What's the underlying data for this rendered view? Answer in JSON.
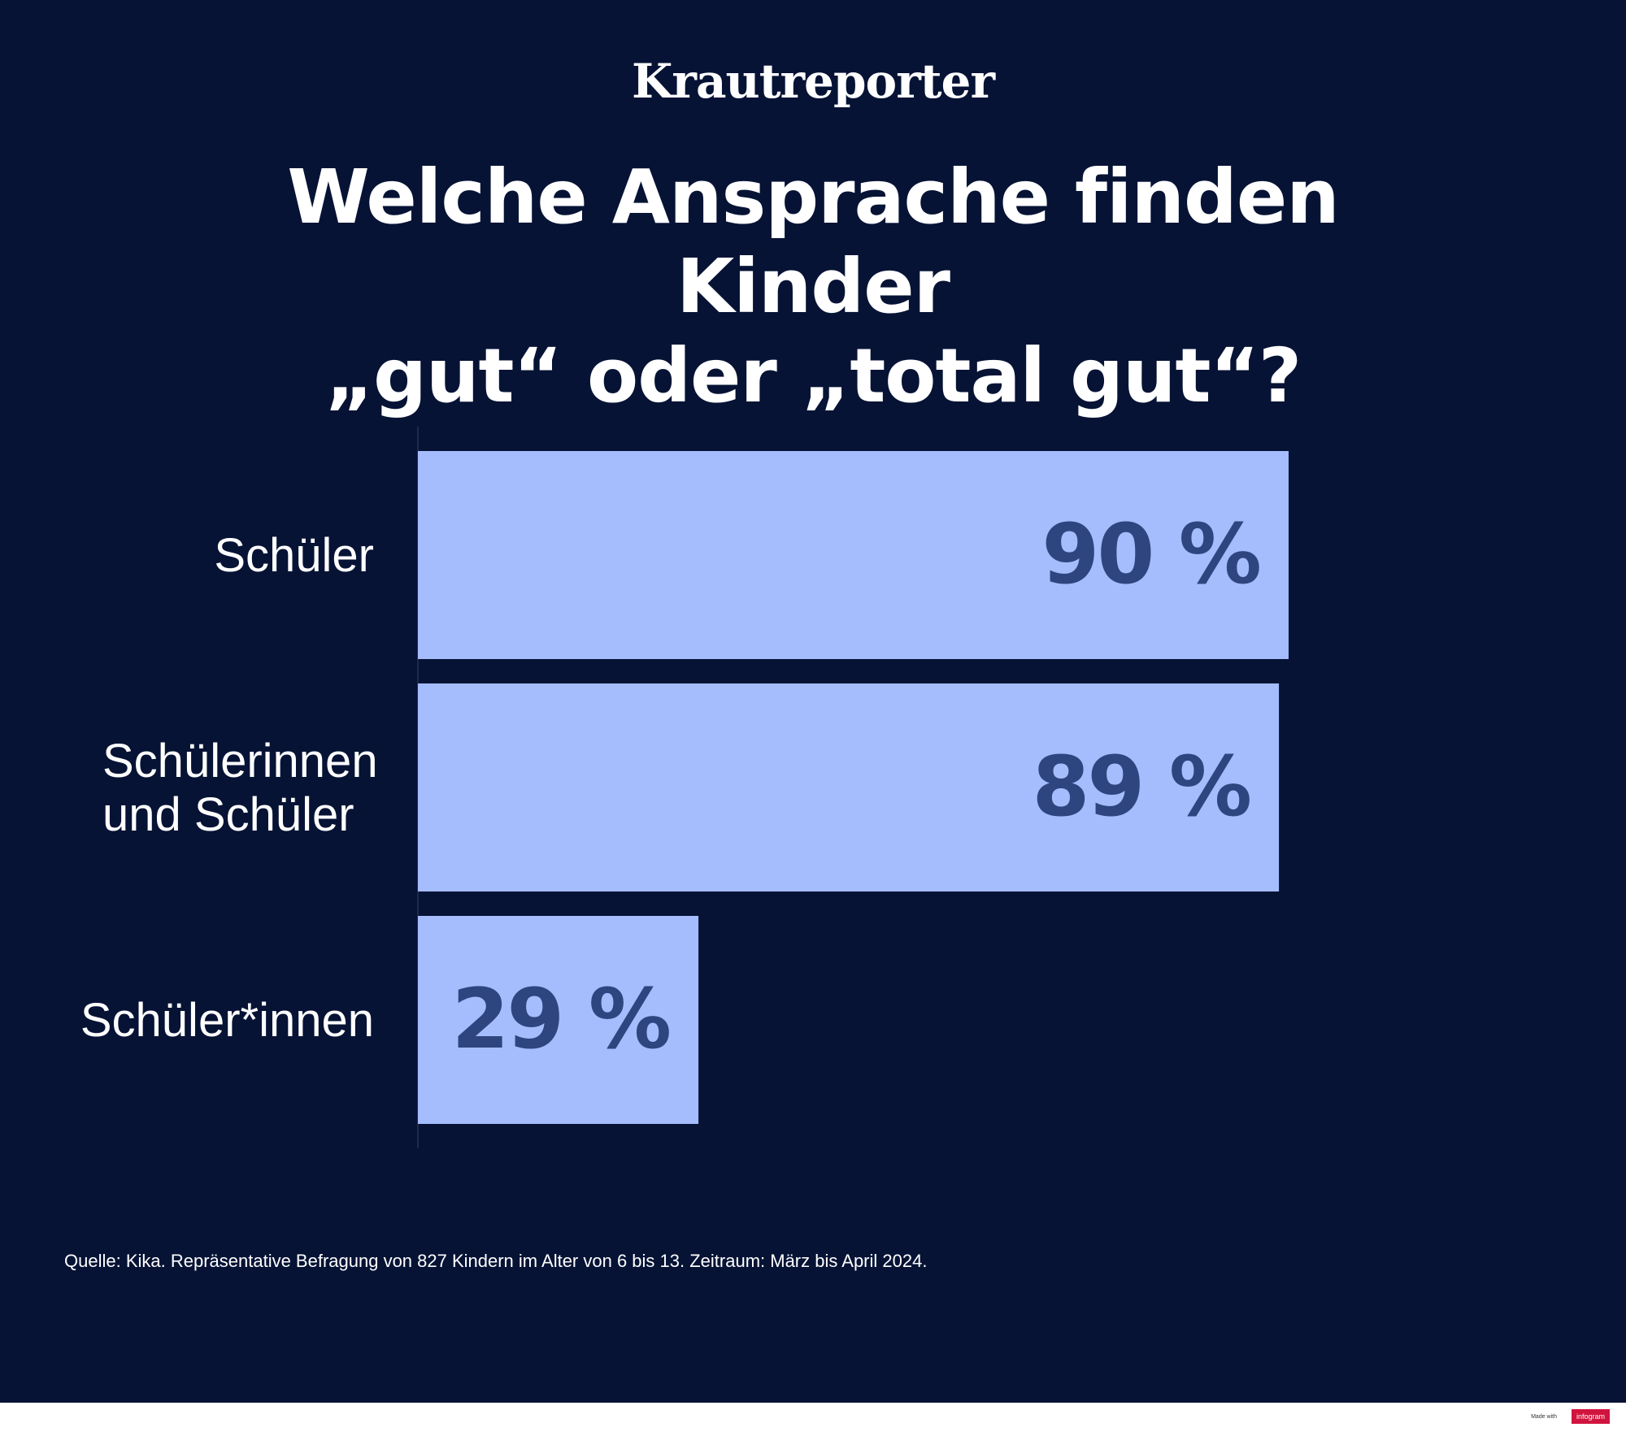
{
  "brand": "Krautreporter",
  "chart_data": {
    "type": "bar",
    "orientation": "horizontal",
    "title": [
      "Welche Ansprache finden Kinder",
      "„gut“ oder „total gut“?"
    ],
    "categories": [
      [
        "Schüler"
      ],
      [
        "Schülerinnen",
        "und Schüler"
      ],
      [
        "Schüler*innen"
      ]
    ],
    "values": [
      90,
      89,
      29
    ],
    "value_labels": [
      "90 %",
      "89 %",
      "29 %"
    ],
    "xlim": [
      0,
      100
    ],
    "grid": false,
    "colors": {
      "background": "#061335",
      "bar": "#a5bdfd",
      "value_label": "#2f4580",
      "text": "#ffffff"
    }
  },
  "source": "Quelle: Kika. Repräsentative Befragung von 827 Kindern im Alter von 6 bis 13. Zeitraum: März bis April 2024.",
  "footer": {
    "made_with": "Made with",
    "logo": "infogram"
  }
}
